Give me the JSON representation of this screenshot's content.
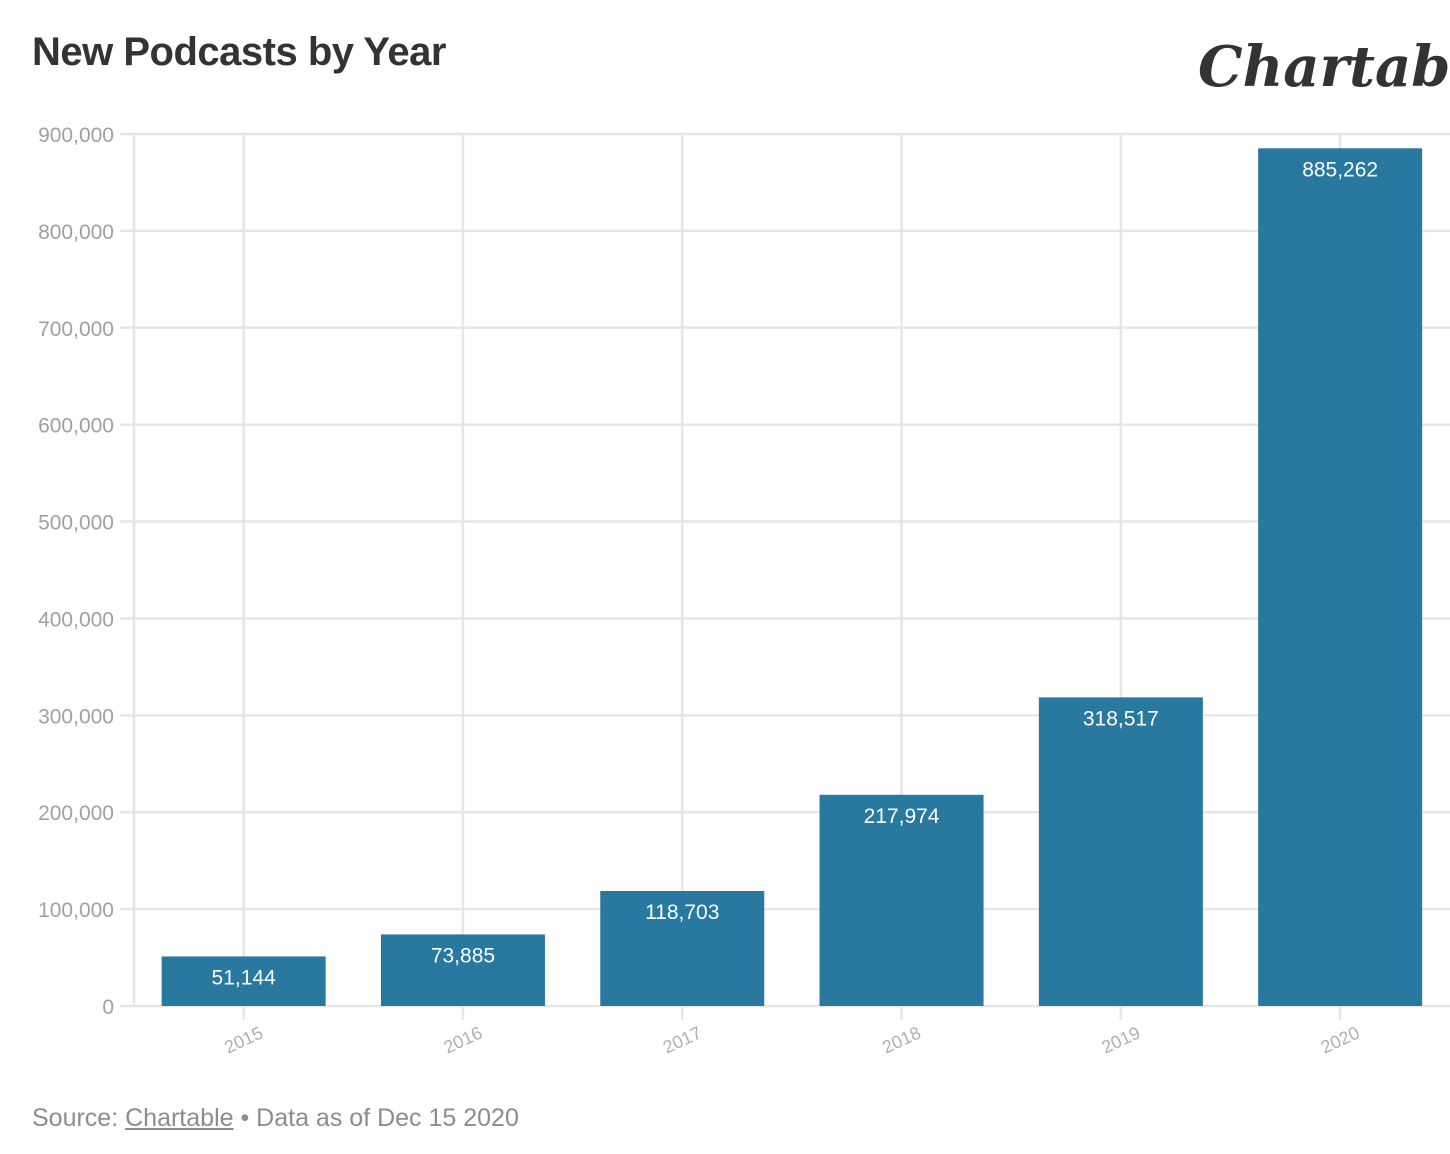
{
  "title": "New Podcasts by Year",
  "logo_text": "Chartable",
  "source": {
    "prefix": "Source:",
    "link_text": "Chartable",
    "suffix": "• Data as of Dec 15 2020"
  },
  "colors": {
    "bar": "#2878a0",
    "title": "#333333",
    "grid": "#e6e6e6",
    "muted_text": "#a0a0a0"
  },
  "chart_data": {
    "type": "bar",
    "title": "New Podcasts by Year",
    "xlabel": "",
    "ylabel": "",
    "categories": [
      "2015",
      "2016",
      "2017",
      "2018",
      "2019",
      "2020"
    ],
    "values": [
      51144,
      73885,
      118703,
      217974,
      318517,
      885262
    ],
    "value_labels": [
      "51,144",
      "73,885",
      "118,703",
      "217,974",
      "318,517",
      "885,262"
    ],
    "ylim": [
      0,
      900000
    ],
    "y_ticks": [
      0,
      100000,
      200000,
      300000,
      400000,
      500000,
      600000,
      700000,
      800000,
      900000
    ],
    "y_tick_labels": [
      "0",
      "100,000",
      "200,000",
      "300,000",
      "400,000",
      "500,000",
      "600,000",
      "700,000",
      "800,000",
      "900,000"
    ],
    "grid": true,
    "legend": "none"
  }
}
